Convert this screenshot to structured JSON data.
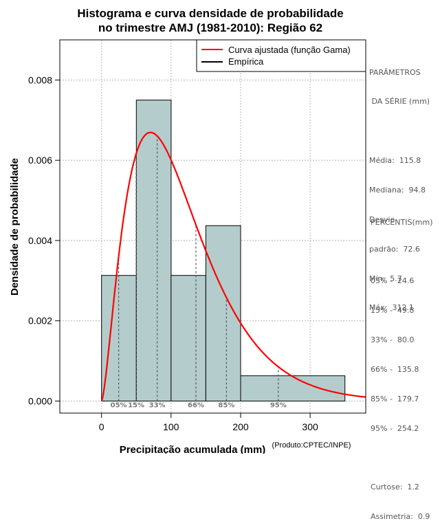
{
  "chart_data": {
    "type": "bar",
    "title_line1": "Histograma e curva densidade de probabilidade",
    "title_line2": "no trimestre AMJ (1981-2010): Região 62",
    "xlabel": "Precipitação acumulada (mm)",
    "ylabel": "Densidade de probabilidade",
    "credit": "(Produto:CPTEC/INPE)",
    "xlim": [
      -60,
      380
    ],
    "ylim": [
      -0.0003,
      0.009
    ],
    "x_ticks": [
      {
        "value": 0,
        "label": "0"
      },
      {
        "value": 100,
        "label": "100"
      },
      {
        "value": 200,
        "label": "200"
      },
      {
        "value": 300,
        "label": "300"
      }
    ],
    "y_ticks": [
      {
        "value": 0,
        "label": "0.000"
      },
      {
        "value": 0.002,
        "label": "0.002"
      },
      {
        "value": 0.004,
        "label": "0.004"
      },
      {
        "value": 0.006,
        "label": "0.006"
      },
      {
        "value": 0.008,
        "label": "0.008"
      }
    ],
    "grid": true,
    "bins": [
      {
        "start": 0,
        "end": 50,
        "density": 0.00313
      },
      {
        "start": 50,
        "end": 100,
        "density": 0.0075
      },
      {
        "start": 100,
        "end": 150,
        "density": 0.00313
      },
      {
        "start": 150,
        "end": 200,
        "density": 0.00437
      },
      {
        "start": 200,
        "end": 350,
        "density": 0.00063
      }
    ],
    "gamma_curve": {
      "name": "Curva ajustada (função Gama)",
      "shape": 2.55,
      "scale": 45.4,
      "x_range": [
        0,
        380
      ],
      "color": "#ff0000"
    },
    "percentile_lines": [
      {
        "label": "05%",
        "x": 24.6
      },
      {
        "label": "15%",
        "x": 49.8
      },
      {
        "label": "33%",
        "x": 80.0
      },
      {
        "label": "66%",
        "x": 135.8
      },
      {
        "label": "85%",
        "x": 179.7
      },
      {
        "label": "95%",
        "x": 254.2
      }
    ],
    "legend": [
      {
        "label": "Curva ajustada (função Gama)",
        "color": "#ff0000"
      },
      {
        "label": "Empírica",
        "color": "#000000"
      }
    ],
    "legend_position": "top-right",
    "bar_fill": "#b4cccc"
  },
  "side_panel": {
    "params_title_1": "PARÂMETROS",
    "params_title_2": " DA SÉRIE (mm)",
    "media": "Média:  115.8",
    "mediana": "Mediana:  94.8",
    "desvio_1": "Desvio",
    "desvio_2": "padrão:  72.6",
    "min": "Mín:  5.7",
    "max": "Máx:  312.1",
    "perc_title": "PERCENTIS(mm)",
    "p05": "05% -  24.6",
    "p15": "15% -  49.8",
    "p33": "33% -  80.0",
    "p66": "66% -  135.8",
    "p85": "85% -  179.7",
    "p95": "95% -  254.2",
    "curtose": "Curtose:  1.2",
    "assimetria": "Assimetria:  0.9"
  }
}
